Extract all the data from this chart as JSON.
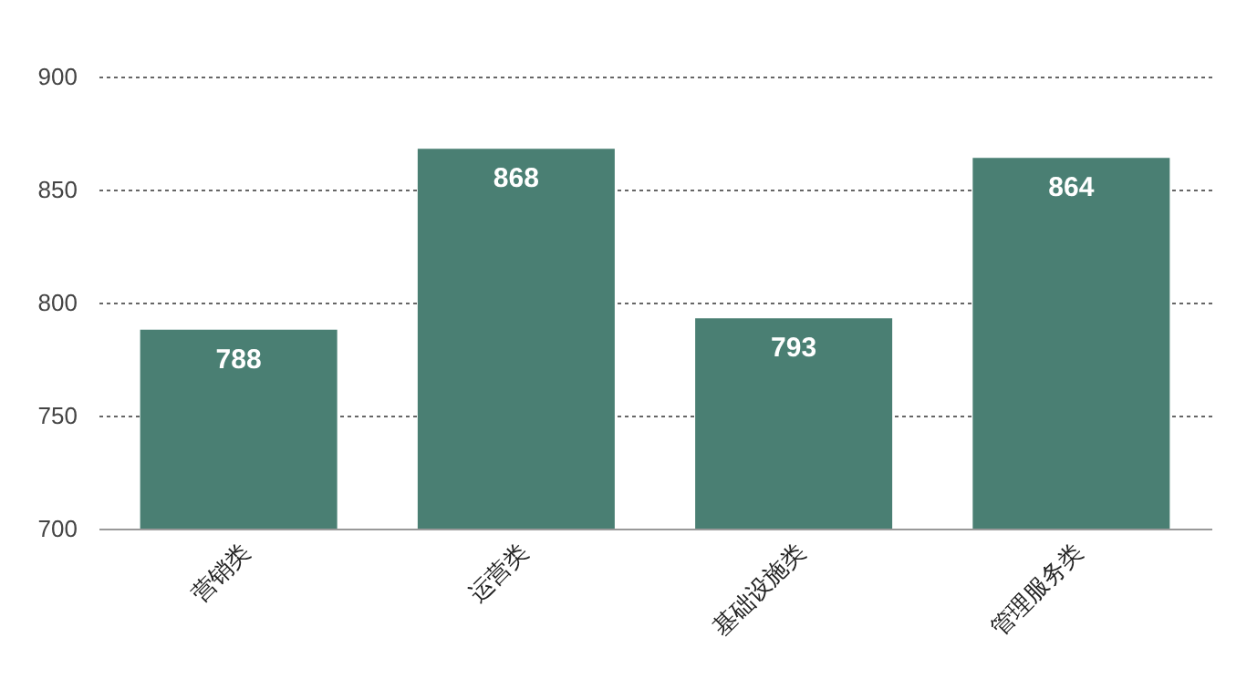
{
  "chart_data": {
    "type": "bar",
    "categories": [
      "营销类",
      "运营类",
      "基础设施类",
      "管理服务类"
    ],
    "values": [
      788,
      868,
      793,
      864
    ],
    "color": "#4a7f73",
    "ylim": [
      700,
      900
    ],
    "yticks": [
      700,
      750,
      800,
      850,
      900
    ],
    "grid": "y",
    "data_labels": true
  }
}
